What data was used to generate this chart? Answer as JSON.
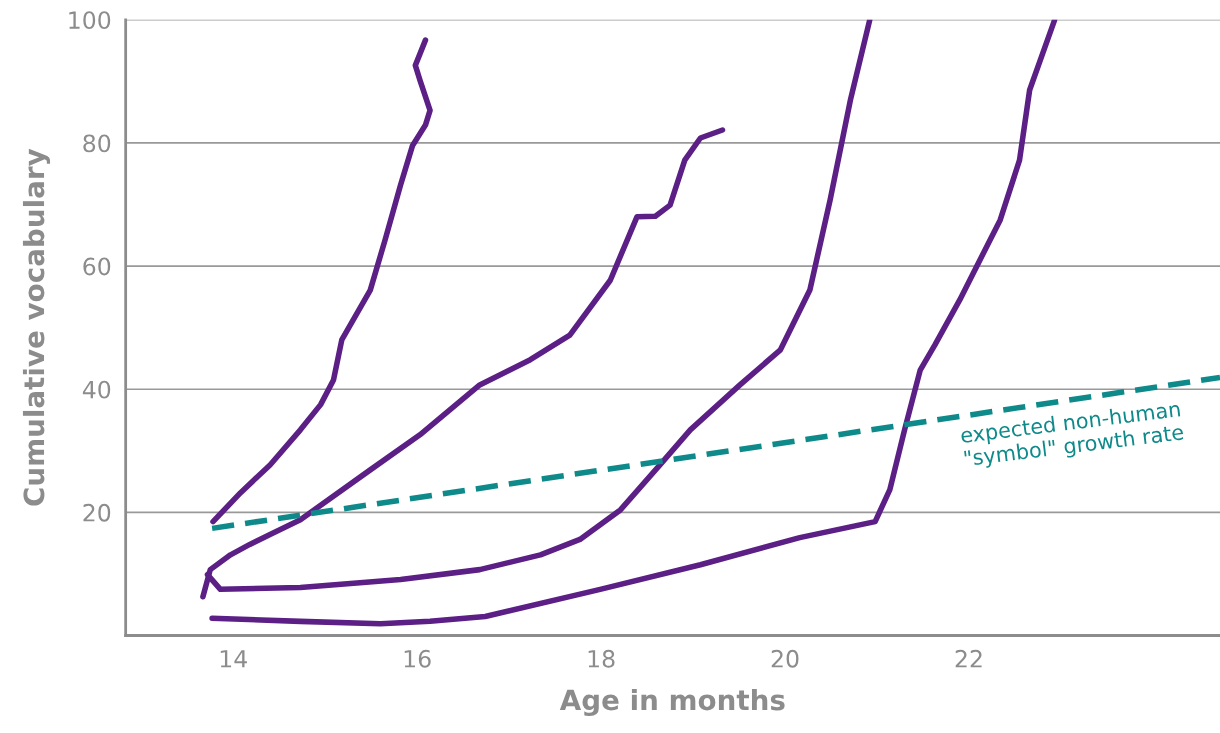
{
  "chart_data": {
    "type": "line",
    "xlabel": "Age in months",
    "ylabel": "Cumulative vocabulary",
    "xlim": [
      12.83,
      24.73
    ],
    "ylim": [
      0,
      100
    ],
    "xticks": [
      14,
      16,
      18,
      20,
      22
    ],
    "yticks": [
      20,
      40,
      60,
      80,
      100
    ],
    "grid": "y",
    "marker": "none",
    "line_style": "solid",
    "series": [
      {
        "color": "#5b1f86",
        "x": [
          13.78,
          14.08,
          14.4,
          14.73,
          14.95,
          15.09,
          15.18,
          15.49,
          15.65,
          15.82,
          15.95,
          16.09,
          16.14,
          16.03,
          15.98,
          16.09
        ],
        "values": [
          18.5,
          23.2,
          27.7,
          33.4,
          37.5,
          41.5,
          48.0,
          56.1,
          64.2,
          73.2,
          79.6,
          82.9,
          85.3,
          90.2,
          92.6,
          96.7
        ]
      },
      {
        "color": "#5b1f86",
        "x": [
          13.67,
          13.75,
          13.97,
          14.18,
          14.4,
          14.73,
          15.49,
          16.03,
          16.68,
          17.23,
          17.66,
          18.1,
          18.39,
          18.59,
          18.75,
          18.91,
          19.08,
          19.32
        ],
        "values": [
          6.3,
          10.7,
          13.1,
          14.8,
          16.4,
          18.8,
          26.9,
          32.6,
          40.7,
          44.8,
          48.8,
          57.7,
          68.0,
          68.1,
          69.9,
          77.2,
          80.8,
          82.1
        ]
      },
      {
        "color": "#5b1f86",
        "x": [
          13.72,
          13.86,
          14.73,
          15.82,
          16.68,
          17.34,
          17.77,
          18.21,
          18.64,
          18.97,
          19.51,
          19.95,
          20.27,
          20.49,
          20.71,
          20.92
        ],
        "values": [
          9.9,
          7.5,
          7.8,
          9.1,
          10.7,
          13.1,
          15.6,
          20.4,
          27.7,
          33.4,
          40.7,
          46.4,
          56.1,
          70.7,
          86.9,
          99.9
        ]
      },
      {
        "color": "#5b1f86",
        "x": [
          13.77,
          14.73,
          15.6,
          16.14,
          16.74,
          17.99,
          19.08,
          20.16,
          20.98,
          21.14,
          21.3,
          21.47,
          21.63,
          21.9,
          22.34,
          22.55,
          22.66,
          22.93
        ],
        "values": [
          2.8,
          2.3,
          1.9,
          2.3,
          3.1,
          7.5,
          11.5,
          15.9,
          18.5,
          23.7,
          33.4,
          43.1,
          47.2,
          54.5,
          67.5,
          77.2,
          88.6,
          99.9
        ]
      },
      {
        "color": "#0e8a8a",
        "line_style": "dashed",
        "x": [
          13.77,
          24.73
        ],
        "values": [
          17.4,
          41.9
        ]
      }
    ],
    "annotations": [
      "expected non-human\n\"symbol\" growth rate"
    ]
  }
}
